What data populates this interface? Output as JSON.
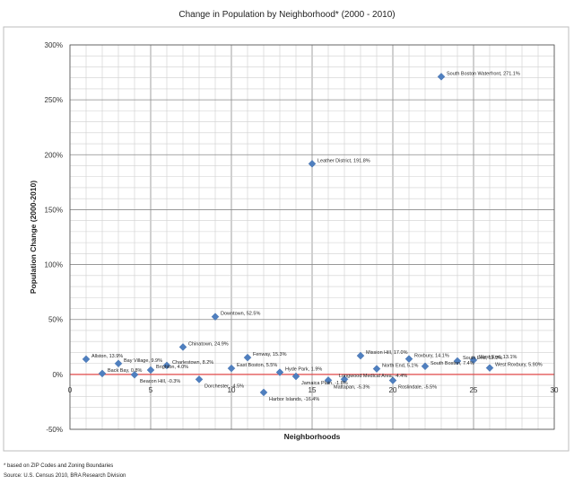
{
  "chart_data": {
    "type": "scatter",
    "title": "Change in Population by Neighborhood* (2000 - 2010)",
    "xlabel": "Neighborhoods",
    "ylabel": "Population Change (2000-2010)",
    "xlim": [
      0,
      30
    ],
    "ylim": [
      -50,
      300
    ],
    "x_ticks": [
      "0",
      "5",
      "10",
      "15",
      "20",
      "25",
      "30"
    ],
    "y_ticks": [
      "-50%",
      "0%",
      "50%",
      "100%",
      "150%",
      "200%",
      "250%",
      "300%"
    ],
    "grid": true,
    "marker_color": "#4f7fbf",
    "zero_line_color": "#e04848",
    "points": [
      {
        "x": 1,
        "y": 13.9,
        "label": "Allston, 13.9%"
      },
      {
        "x": 2,
        "y": 0.8,
        "label": "Back Bay, 0.8%"
      },
      {
        "x": 3,
        "y": 9.9,
        "label": "Bay Village, 9.9%"
      },
      {
        "x": 4,
        "y": -0.3,
        "label": "Beacon Hill, -0.3%"
      },
      {
        "x": 5,
        "y": 4.0,
        "label": "Brighton, 4.0%"
      },
      {
        "x": 6,
        "y": 8.2,
        "label": "Charlestown, 8.2%"
      },
      {
        "x": 7,
        "y": 24.9,
        "label": "Chinatown, 24.9%"
      },
      {
        "x": 8,
        "y": -4.5,
        "label": "Dorchester, -4.5%"
      },
      {
        "x": 9,
        "y": 52.5,
        "label": "Downtown, 52.5%"
      },
      {
        "x": 10,
        "y": 5.5,
        "label": "East Boston, 5.5%"
      },
      {
        "x": 11,
        "y": 15.3,
        "label": "Fenway, 15.3%"
      },
      {
        "x": 12,
        "y": -16.4,
        "label": "Harbor Islands, -16.4%"
      },
      {
        "x": 13,
        "y": 1.9,
        "label": "Hyde Park, 1.9%"
      },
      {
        "x": 14,
        "y": -1.8,
        "label": "Jamaica Plain, -1.8%"
      },
      {
        "x": 15,
        "y": 191.8,
        "label": "Leather District, 191.8%"
      },
      {
        "x": 16,
        "y": -5.3,
        "label": "Mattapan, -5.3%"
      },
      {
        "x": 17,
        "y": -4.4,
        "label": "Longwood Medical Area, -4.4%"
      },
      {
        "x": 18,
        "y": 17.0,
        "label": "Mission Hill, 17.0%"
      },
      {
        "x": 19,
        "y": 5.1,
        "label": "North End, 5.1%"
      },
      {
        "x": 20,
        "y": -5.5,
        "label": "Roslindale, -5.5%"
      },
      {
        "x": 21,
        "y": 14.1,
        "label": "Roxbury, 14.1%"
      },
      {
        "x": 22,
        "y": 7.4,
        "label": "South Boston, 7.4%"
      },
      {
        "x": 23,
        "y": 271.1,
        "label": "South Boston Waterfront, 271.1%"
      },
      {
        "x": 24,
        "y": 12.2,
        "label": "South End, 12.2%"
      },
      {
        "x": 25,
        "y": 13.1,
        "label": "West End, 13.1%"
      },
      {
        "x": 26,
        "y": 5.9,
        "label": "West Roxbury, 5.90%"
      }
    ]
  },
  "notes": {
    "footnote": "* based on ZIP Codes and Zoning Boundaries",
    "source": "Source: U.S. Census 2010, BRA Research Division"
  }
}
